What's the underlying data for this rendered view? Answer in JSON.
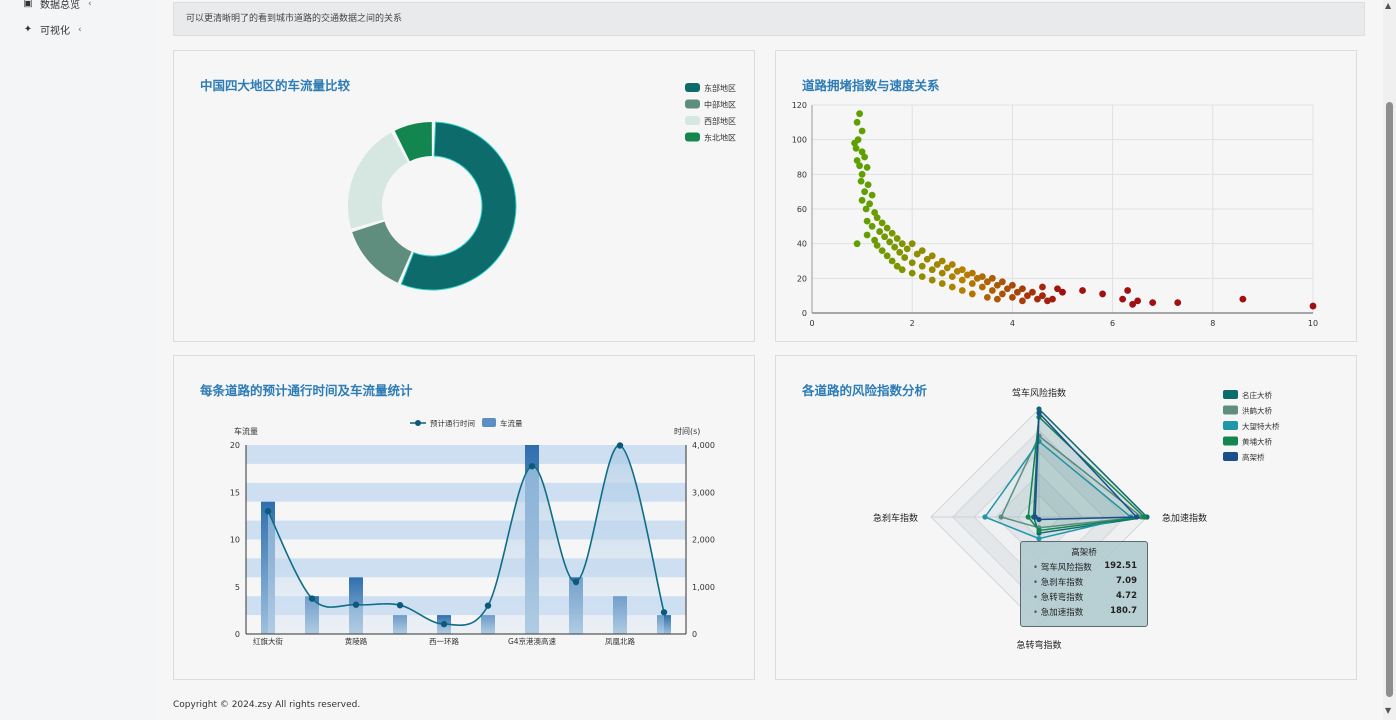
{
  "sidebar": {
    "items": [
      {
        "label": "数据总览",
        "icon": "document-icon"
      },
      {
        "label": "可视化",
        "icon": "pin-icon"
      }
    ]
  },
  "info_bar": {
    "text": "可以更清晰明了的看到城市道路的交通数据之间的关系"
  },
  "panels": {
    "donut_title": "中国四大地区的车流量比较",
    "scatter_title": "道路拥堵指数与速度关系",
    "bar_line_title": "每条道路的预计通行时间及车流量统计",
    "radar_title": "各道路的风险指数分析"
  },
  "chart_data": [
    {
      "type": "pie",
      "variant": "donut",
      "title": "中国四大地区的车流量比较",
      "legend_position": "top-right",
      "slices": [
        {
          "label": "东部地区",
          "value": 56,
          "color": "#0d6b6b"
        },
        {
          "label": "中部地区",
          "value": 14,
          "color": "#5f8e7e"
        },
        {
          "label": "西部地区",
          "value": 22,
          "color": "#d6e6e0"
        },
        {
          "label": "东北地区",
          "value": 8,
          "color": "#13854f"
        }
      ]
    },
    {
      "type": "scatter",
      "title": "道路拥堵指数与速度关系",
      "xlim": [
        0,
        10
      ],
      "ylim": [
        0,
        120
      ],
      "xticks": [
        0,
        2,
        4,
        6,
        8,
        10
      ],
      "yticks": [
        0,
        20,
        40,
        60,
        80,
        100,
        120
      ],
      "grid": true,
      "color_low": "#5fa000",
      "color_mid": "#b38000",
      "color_high": "#a01010",
      "points": [
        [
          0.95,
          115
        ],
        [
          0.9,
          110
        ],
        [
          1.0,
          105
        ],
        [
          0.92,
          100
        ],
        [
          0.85,
          98
        ],
        [
          0.88,
          95
        ],
        [
          1.0,
          93
        ],
        [
          1.05,
          90
        ],
        [
          0.9,
          88
        ],
        [
          0.95,
          85
        ],
        [
          1.1,
          84
        ],
        [
          1.0,
          80
        ],
        [
          0.98,
          76
        ],
        [
          1.12,
          74
        ],
        [
          1.05,
          70
        ],
        [
          1.2,
          68
        ],
        [
          1.0,
          65
        ],
        [
          1.15,
          63
        ],
        [
          1.08,
          60
        ],
        [
          1.25,
          58
        ],
        [
          1.3,
          55
        ],
        [
          1.1,
          53
        ],
        [
          1.4,
          52
        ],
        [
          1.2,
          50
        ],
        [
          1.5,
          49
        ],
        [
          1.35,
          47
        ],
        [
          1.6,
          46
        ],
        [
          1.1,
          45
        ],
        [
          1.45,
          44
        ],
        [
          1.7,
          43
        ],
        [
          1.25,
          42
        ],
        [
          1.55,
          41
        ],
        [
          1.8,
          40
        ],
        [
          0.9,
          40
        ],
        [
          2.0,
          40
        ],
        [
          1.3,
          39
        ],
        [
          1.65,
          38
        ],
        [
          1.9,
          37
        ],
        [
          2.2,
          36
        ],
        [
          1.4,
          36
        ],
        [
          1.75,
          35
        ],
        [
          2.1,
          34
        ],
        [
          2.4,
          33
        ],
        [
          1.5,
          33
        ],
        [
          1.85,
          32
        ],
        [
          2.3,
          31
        ],
        [
          2.6,
          30
        ],
        [
          1.6,
          30
        ],
        [
          2.0,
          29
        ],
        [
          2.5,
          28
        ],
        [
          2.8,
          28
        ],
        [
          1.7,
          27
        ],
        [
          2.2,
          27
        ],
        [
          2.7,
          26
        ],
        [
          3.0,
          25
        ],
        [
          1.8,
          25
        ],
        [
          2.4,
          25
        ],
        [
          2.9,
          24
        ],
        [
          3.2,
          23
        ],
        [
          2.0,
          23
        ],
        [
          2.6,
          23
        ],
        [
          3.1,
          22
        ],
        [
          3.4,
          21
        ],
        [
          2.2,
          21
        ],
        [
          2.8,
          21
        ],
        [
          3.3,
          20
        ],
        [
          3.6,
          20
        ],
        [
          2.4,
          19
        ],
        [
          3.0,
          19
        ],
        [
          3.5,
          18
        ],
        [
          3.8,
          18
        ],
        [
          2.6,
          17
        ],
        [
          3.2,
          17
        ],
        [
          3.7,
          16
        ],
        [
          4.0,
          16
        ],
        [
          2.8,
          15
        ],
        [
          3.4,
          15
        ],
        [
          3.9,
          14
        ],
        [
          4.2,
          14
        ],
        [
          3.0,
          13
        ],
        [
          3.6,
          13
        ],
        [
          4.1,
          12
        ],
        [
          4.4,
          12
        ],
        [
          3.2,
          11
        ],
        [
          3.8,
          11
        ],
        [
          4.3,
          10
        ],
        [
          4.6,
          10
        ],
        [
          3.5,
          9
        ],
        [
          4.0,
          9
        ],
        [
          4.5,
          8
        ],
        [
          4.8,
          8
        ],
        [
          3.7,
          8
        ],
        [
          4.2,
          7
        ],
        [
          4.7,
          7
        ],
        [
          5.0,
          12
        ],
        [
          4.6,
          15
        ],
        [
          4.9,
          14
        ],
        [
          5.4,
          13
        ],
        [
          5.8,
          11
        ],
        [
          6.3,
          13
        ],
        [
          6.2,
          8
        ],
        [
          6.5,
          7
        ],
        [
          6.8,
          6
        ],
        [
          6.4,
          5
        ],
        [
          7.3,
          6
        ],
        [
          8.6,
          8
        ],
        [
          10.0,
          4
        ]
      ]
    },
    {
      "type": "bar",
      "title": "每条道路的预计通行时间及车流量统计",
      "legend_position": "top-center",
      "ylabel": "车流量",
      "y2label": "时间(s)",
      "ylim": [
        0,
        20
      ],
      "y2lim": [
        0,
        4000
      ],
      "yticks": [
        "0",
        "5",
        "10",
        "15",
        "20"
      ],
      "y2ticks": [
        "0",
        "1,000",
        "2,000",
        "3,000",
        "4,000"
      ],
      "x_tick_labels": [
        "红旗大街",
        "黄陵路",
        "西一环路",
        "G4京港澳高速",
        "凤凰北路"
      ],
      "categories": [
        "红旗大街",
        "",
        "黄陵路",
        "",
        "西一环路",
        "",
        "G4京港澳高速",
        "",
        "凤凰北路",
        ""
      ],
      "series": [
        {
          "name": "车流量",
          "kind": "bar",
          "values": [
            14,
            4,
            6,
            2,
            2,
            2,
            20,
            6,
            4,
            2
          ]
        },
        {
          "name": "预计通行时间",
          "kind": "line",
          "values": [
            2600,
            750,
            620,
            610,
            210,
            600,
            3550,
            1100,
            3990,
            460
          ]
        }
      ]
    },
    {
      "type": "radar",
      "title": "各道路的风险指数分析",
      "legend_position": "top-right",
      "indicators": [
        "驾车风险指数",
        "急加速指数",
        "急转弯指数",
        "急刹车指数"
      ],
      "max": 200,
      "series": [
        {
          "name": "名庄大桥",
          "color": "#0d6b6b",
          "values": [
            200,
            200,
            30,
            10
          ]
        },
        {
          "name": "洪鹤大桥",
          "color": "#5f8e7e",
          "values": [
            150,
            190,
            20,
            70
          ]
        },
        {
          "name": "大望特大桥",
          "color": "#1f97a8",
          "values": [
            140,
            170,
            40,
            100
          ]
        },
        {
          "name": "黄埔大桥",
          "color": "#13854f",
          "values": [
            185,
            195,
            25,
            20
          ]
        },
        {
          "name": "高架桥",
          "color": "#1a4f8a",
          "values": [
            192.51,
            180.7,
            4.72,
            7.09
          ]
        }
      ],
      "tooltip": {
        "title": "高架桥",
        "rows": [
          {
            "label": "驾车风险指数",
            "value": "192.51"
          },
          {
            "label": "急刹车指数",
            "value": "7.09"
          },
          {
            "label": "急转弯指数",
            "value": "4.72"
          },
          {
            "label": "急加速指数",
            "value": "180.7"
          }
        ]
      }
    }
  ],
  "footer": {
    "copyright": "Copyright © 2024.zsy All rights reserved."
  }
}
